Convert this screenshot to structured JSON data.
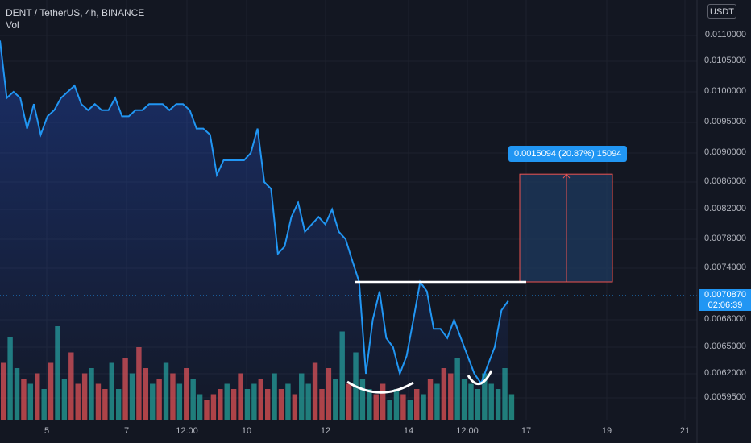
{
  "header": {
    "title": "DENT / TetherUS, 4h, BINANCE",
    "volume_label": "Vol"
  },
  "currency_button": "USDT",
  "colors": {
    "line": "#2196f3",
    "up_volume": "#26a69a",
    "down_volume": "#ef5350",
    "measure_fill": "#1e3a5f",
    "measure_line": "#ef5350",
    "background": "#131722"
  },
  "price_axis": {
    "labels": [
      "0.0110000",
      "0.0105000",
      "0.0100000",
      "0.0095000",
      "0.0090000",
      "0.0086000",
      "0.0082000",
      "0.0078000",
      "0.0074000",
      "0.0068000",
      "0.0065000",
      "0.0062000",
      "0.0059500"
    ]
  },
  "time_axis": {
    "labels": [
      "5",
      "7",
      "12:00",
      "10",
      "12",
      "14",
      "12:00",
      "17",
      "19",
      "21"
    ]
  },
  "current_price": {
    "value": "0.0070870",
    "countdown": "02:06:39"
  },
  "measure": {
    "label": "0.0015094 (20.87%) 15094",
    "from_price": 0.0072,
    "to_price": 0.008709
  },
  "chart_data": {
    "type": "line",
    "title": "DENT / TetherUS, 4h, BINANCE",
    "x_range": [
      "4",
      "21"
    ],
    "y_range": [
      0.00575,
      0.0116
    ],
    "grid": true,
    "series": [
      {
        "values": [
          0.0109,
          0.0099,
          0.01,
          0.0099,
          0.0094,
          0.0098,
          0.0093,
          0.0096,
          0.0097,
          0.0099,
          0.01,
          0.0101,
          0.0098,
          0.0097,
          0.0098,
          0.0097,
          0.0097,
          0.0099,
          0.0096,
          0.0096,
          0.0097,
          0.0097,
          0.0098,
          0.0098,
          0.0098,
          0.0097,
          0.0098,
          0.0098,
          0.0097,
          0.0094,
          0.0094,
          0.0093,
          0.0087,
          0.0089,
          0.0089,
          0.0089,
          0.0089,
          0.009,
          0.0094,
          0.0086,
          0.0085,
          0.0076,
          0.0077,
          0.0081,
          0.0083,
          0.0079,
          0.008,
          0.0081,
          0.008,
          0.0082,
          0.0079,
          0.0078,
          0.0075,
          0.0072,
          0.0062,
          0.0068,
          0.0071,
          0.0066,
          0.0065,
          0.0062,
          0.0064,
          0.0068,
          0.0072,
          0.0071,
          0.0067,
          0.0067,
          0.0066,
          0.0068,
          0.0066,
          0.0064,
          0.0062,
          0.0061,
          0.0063,
          0.0065,
          0.0069,
          0.007
        ]
      },
      {
        "name": "Vol",
        "up_down": "duud udud uudd dudd uudu ddud udud uudd dudd uudd udud uudd duud uuud duud udud uddu uuuu uuuu",
        "values": [
          0.55,
          0.8,
          0.5,
          0.4,
          0.35,
          0.45,
          0.3,
          0.55,
          0.9,
          0.4,
          0.65,
          0.35,
          0.45,
          0.5,
          0.35,
          0.3,
          0.55,
          0.3,
          0.6,
          0.45,
          0.7,
          0.5,
          0.35,
          0.4,
          0.55,
          0.45,
          0.35,
          0.5,
          0.4,
          0.25,
          0.2,
          0.25,
          0.3,
          0.35,
          0.3,
          0.45,
          0.3,
          0.35,
          0.4,
          0.3,
          0.45,
          0.3,
          0.35,
          0.25,
          0.45,
          0.35,
          0.55,
          0.3,
          0.5,
          0.4,
          0.85,
          0.35,
          0.65,
          0.4,
          0.3,
          0.25,
          0.35,
          0.2,
          0.3,
          0.25,
          0.2,
          0.3,
          0.25,
          0.4,
          0.35,
          0.5,
          0.45,
          0.6,
          0.4,
          0.35,
          0.3,
          0.45,
          0.35,
          0.3,
          0.5,
          0.25
        ]
      }
    ]
  }
}
